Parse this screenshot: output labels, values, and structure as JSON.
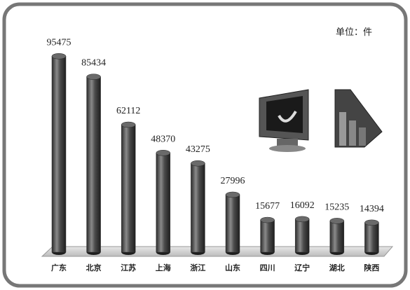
{
  "chart_data": {
    "type": "bar",
    "unit_label": "单位：件",
    "categories": [
      "广东",
      "北京",
      "江苏",
      "上海",
      "浙江",
      "山东",
      "四川",
      "辽宁",
      "湖北",
      "陕西"
    ],
    "values": [
      95475,
      85434,
      62112,
      48370,
      43275,
      27996,
      15677,
      16092,
      15235,
      14394
    ],
    "color": "#3a3a3a"
  }
}
